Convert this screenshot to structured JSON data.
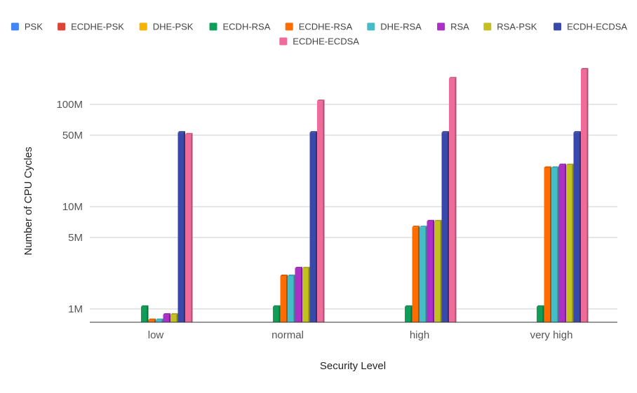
{
  "chart_data": {
    "type": "bar",
    "title": "",
    "xlabel": "Security Level",
    "ylabel": "Number of CPU Cycles",
    "yscale": "log",
    "ylim": [
      750000,
      320000000
    ],
    "yticks": [
      {
        "value": 1000000,
        "label": "1M"
      },
      {
        "value": 5000000,
        "label": "5M"
      },
      {
        "value": 10000000,
        "label": "10M"
      },
      {
        "value": 50000000,
        "label": "50M"
      },
      {
        "value": 100000000,
        "label": "100M"
      }
    ],
    "grid": true,
    "legend_position": "top",
    "categories": [
      "low",
      "normal",
      "high",
      "very high"
    ],
    "series": [
      {
        "name": "PSK",
        "color": "#4285f4",
        "values": [
          null,
          null,
          null,
          null
        ]
      },
      {
        "name": "ECDHE-PSK",
        "color": "#db4437",
        "values": [
          null,
          null,
          null,
          null
        ]
      },
      {
        "name": "DHE-PSK",
        "color": "#f4b400",
        "values": [
          null,
          null,
          null,
          null
        ]
      },
      {
        "name": "ECDH-RSA",
        "color": "#0f9d58",
        "values": [
          1050000,
          1050000,
          1050000,
          1050000
        ]
      },
      {
        "name": "ECDHE-RSA",
        "color": "#ff6d01",
        "values": [
          780000,
          2100000,
          6300000,
          24000000
        ]
      },
      {
        "name": "DHE-RSA",
        "color": "#46bdc6",
        "values": [
          780000,
          2100000,
          6300000,
          24000000
        ]
      },
      {
        "name": "RSA",
        "color": "#ab30c4",
        "values": [
          880000,
          2500000,
          7200000,
          25500000
        ]
      },
      {
        "name": "RSA-PSK",
        "color": "#c2c121",
        "values": [
          880000,
          2500000,
          7200000,
          25500000
        ]
      },
      {
        "name": "ECDH-ECDSA",
        "color": "#3949ab",
        "values": [
          53000000,
          53000000,
          53000000,
          53000000
        ]
      },
      {
        "name": "ECDHE-ECDSA",
        "color": "#ef6c9a",
        "values": [
          51000000,
          108000000,
          180000000,
          220000000
        ]
      }
    ]
  }
}
